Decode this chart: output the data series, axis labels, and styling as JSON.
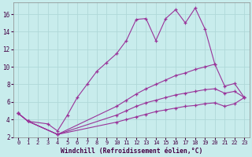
{
  "xlabel": "Windchill (Refroidissement éolien,°C)",
  "bg_color": "#c8ecec",
  "grid_color": "#afd8d8",
  "line_color": "#993399",
  "xmin": 0,
  "xmax": 23,
  "ymin": 2,
  "ymax": 17,
  "yticks": [
    2,
    4,
    6,
    8,
    10,
    12,
    14,
    16
  ],
  "xticks": [
    0,
    1,
    2,
    3,
    4,
    5,
    6,
    7,
    8,
    9,
    10,
    11,
    12,
    13,
    14,
    15,
    16,
    17,
    18,
    19,
    20,
    21,
    22,
    23
  ],
  "line_peaked_x": [
    0,
    1,
    3,
    4,
    5,
    6,
    7,
    8,
    9,
    10,
    11,
    12,
    13,
    14,
    15,
    16,
    17,
    18,
    19,
    20
  ],
  "line_peaked_y": [
    4.7,
    3.8,
    3.5,
    2.7,
    4.5,
    6.5,
    8.0,
    9.5,
    10.5,
    11.5,
    13.0,
    15.4,
    15.5,
    13.0,
    15.5,
    16.5,
    15.0,
    16.7,
    14.3,
    10.3
  ],
  "line_upper_x": [
    0,
    1,
    4,
    10,
    11,
    12,
    13,
    14,
    15,
    16,
    17,
    18,
    19,
    20,
    21,
    22,
    23
  ],
  "line_upper_y": [
    4.7,
    3.8,
    2.3,
    5.5,
    6.2,
    6.9,
    7.5,
    8.0,
    8.5,
    9.0,
    9.3,
    9.7,
    10.0,
    10.3,
    7.8,
    8.1,
    6.5
  ],
  "line_mid_x": [
    0,
    1,
    4,
    10,
    11,
    12,
    13,
    14,
    15,
    16,
    17,
    18,
    19,
    20,
    21,
    22,
    23
  ],
  "line_mid_y": [
    4.7,
    3.8,
    2.3,
    4.5,
    5.0,
    5.5,
    5.9,
    6.2,
    6.5,
    6.8,
    7.0,
    7.2,
    7.4,
    7.5,
    7.0,
    7.2,
    6.5
  ],
  "line_lower_x": [
    0,
    1,
    4,
    10,
    11,
    12,
    13,
    14,
    15,
    16,
    17,
    18,
    19,
    20,
    21,
    22,
    23
  ],
  "line_lower_y": [
    4.7,
    3.8,
    2.3,
    3.7,
    4.0,
    4.3,
    4.6,
    4.9,
    5.1,
    5.3,
    5.5,
    5.6,
    5.8,
    5.9,
    5.5,
    5.8,
    6.5
  ]
}
